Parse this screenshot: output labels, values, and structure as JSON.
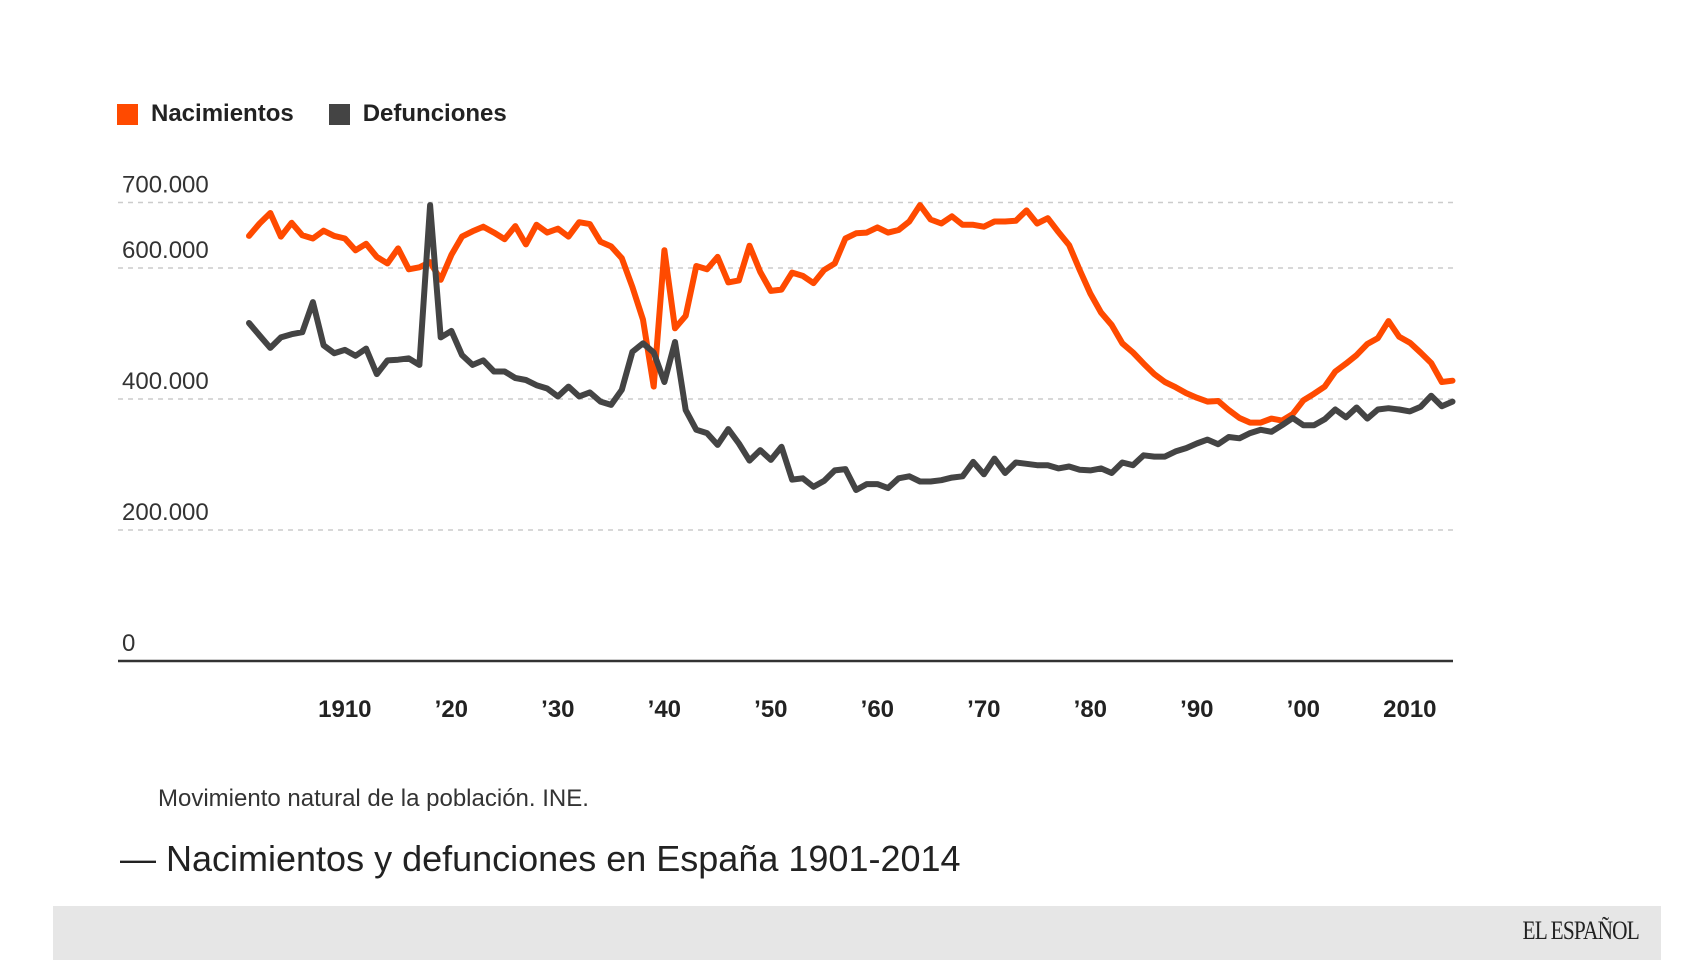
{
  "chart_data": {
    "type": "line",
    "title": "Nacimientos y defunciones en España 1901-2014",
    "source": "Movimiento natural de la población. INE.",
    "xlabel": "",
    "ylabel": "",
    "ylim": [
      0,
      700000
    ],
    "xlim": [
      1901,
      2014
    ],
    "grid": true,
    "legend_position": "top-left",
    "y_ticks": [
      {
        "value": 700000,
        "label": "700.000"
      },
      {
        "value": 600000,
        "label": "600.000"
      },
      {
        "value": 400000,
        "label": "400.000"
      },
      {
        "value": 200000,
        "label": "200.000"
      },
      {
        "value": 0,
        "label": "0"
      }
    ],
    "x_ticks": [
      {
        "value": 1910,
        "label": "1910"
      },
      {
        "value": 1920,
        "label": "’20"
      },
      {
        "value": 1930,
        "label": "’30"
      },
      {
        "value": 1940,
        "label": "’40"
      },
      {
        "value": 1950,
        "label": "’50"
      },
      {
        "value": 1960,
        "label": "’60"
      },
      {
        "value": 1970,
        "label": "’70"
      },
      {
        "value": 1980,
        "label": "’80"
      },
      {
        "value": 1990,
        "label": "’90"
      },
      {
        "value": 2000,
        "label": "’00"
      },
      {
        "value": 2010,
        "label": "2010"
      }
    ],
    "x_start": 1901,
    "series": [
      {
        "name": "Nacimientos",
        "color": "#ff4a00",
        "values": [
          649000,
          668000,
          684000,
          648000,
          669000,
          650000,
          645000,
          657000,
          649000,
          645000,
          627000,
          637000,
          617000,
          607000,
          630000,
          598000,
          601000,
          609000,
          582000,
          620000,
          648000,
          656000,
          663000,
          654000,
          644000,
          664000,
          636000,
          666000,
          654000,
          660000,
          648000,
          670000,
          667000,
          640000,
          633000,
          615000,
          571000,
          521000,
          419000,
          627000,
          508000,
          527000,
          603000,
          598000,
          617000,
          578000,
          581000,
          634000,
          594000,
          565000,
          567000,
          593000,
          588000,
          577000,
          597000,
          607000,
          645000,
          653000,
          654000,
          662000,
          654000,
          658000,
          671000,
          696000,
          674000,
          668000,
          679000,
          666000,
          666000,
          663000,
          671000,
          671000,
          672000,
          688000,
          668000,
          676000,
          655000,
          635000,
          597000,
          561000,
          532000,
          513000,
          485000,
          471000,
          454000,
          438000,
          426000,
          418000,
          409000,
          402000,
          396000,
          397000,
          383000,
          371000,
          364000,
          364000,
          370000,
          367000,
          377000,
          398000,
          408000,
          419000,
          442000,
          454000,
          467000,
          484000,
          493000,
          519000,
          495000,
          486000,
          471000,
          455000,
          426000,
          428000
        ]
      },
      {
        "name": "Defunciones",
        "color": "#444444",
        "values": [
          516000,
          497000,
          478000,
          494000,
          499000,
          502000,
          548000,
          482000,
          470000,
          475000,
          466000,
          477000,
          438000,
          459000,
          460000,
          462000,
          452000,
          696000,
          494000,
          504000,
          467000,
          452000,
          459000,
          442000,
          442000,
          432000,
          429000,
          421000,
          416000,
          404000,
          419000,
          404000,
          410000,
          396000,
          391000,
          414000,
          472000,
          485000,
          471000,
          426000,
          487000,
          383000,
          353000,
          348000,
          330000,
          354000,
          332000,
          306000,
          322000,
          307000,
          327000,
          277000,
          279000,
          266000,
          275000,
          291000,
          293000,
          261000,
          270000,
          270000,
          264000,
          279000,
          282000,
          274000,
          274000,
          276000,
          280000,
          282000,
          304000,
          285000,
          309000,
          287000,
          303000,
          301000,
          299000,
          299000,
          294000,
          297000,
          292000,
          291000,
          294000,
          287000,
          303000,
          299000,
          314000,
          312000,
          312000,
          320000,
          325000,
          332000,
          338000,
          331000,
          342000,
          340000,
          348000,
          353000,
          350000,
          360000,
          371000,
          360000,
          360000,
          369000,
          384000,
          372000,
          387000,
          370000,
          384000,
          386000,
          384000,
          381000,
          388000,
          405000,
          389000,
          396000
        ]
      }
    ]
  },
  "legend": [
    {
      "label": "Nacimientos",
      "color": "#ff4a00"
    },
    {
      "label": "Defunciones",
      "color": "#444444"
    }
  ],
  "source_text": "Movimiento natural de la población. INE.",
  "title_text": "— Nacimientos y defunciones en España 1901-2014",
  "footer": {
    "logo_text": "EL ESPAÑOL",
    "background": "#e6e6e6"
  }
}
